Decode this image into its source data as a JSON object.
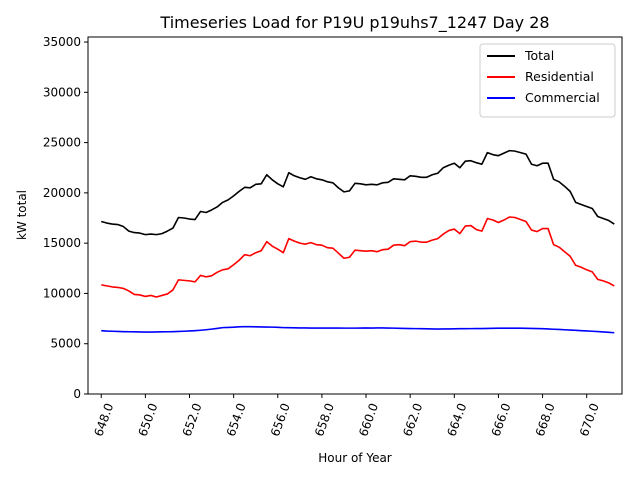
{
  "chart_data": {
    "type": "line",
    "title": "Timeseries Load for P19U p19uhs7_1247  Day 28",
    "xlabel": "Hour of Year",
    "ylabel": "kW total",
    "xlim": [
      647.4,
      671.6
    ],
    "ylim": [
      0,
      35500
    ],
    "xticks": [
      648,
      650,
      652,
      654,
      656,
      658,
      660,
      662,
      664,
      666,
      668,
      670
    ],
    "xtick_labels": [
      "648.0",
      "650.0",
      "652.0",
      "654.0",
      "656.0",
      "658.0",
      "660.0",
      "662.0",
      "664.0",
      "666.0",
      "668.0",
      "670.0"
    ],
    "yticks": [
      0,
      5000,
      10000,
      15000,
      20000,
      25000,
      30000,
      35000
    ],
    "ytick_labels": [
      "0",
      "5000",
      "10000",
      "15000",
      "20000",
      "25000",
      "30000",
      "35000"
    ],
    "legend_position": "top-right",
    "grid": false,
    "x_start": 648.0,
    "x_step": 0.25,
    "series": [
      {
        "name": "Total",
        "color": "#000000",
        "values": [
          17150,
          17000,
          16900,
          16850,
          16650,
          16200,
          16050,
          16000,
          15850,
          15900,
          15850,
          15950,
          16200,
          16500,
          17550,
          17500,
          17400,
          17350,
          18150,
          18050,
          18300,
          18600,
          19050,
          19300,
          19700,
          20150,
          20550,
          20500,
          20850,
          20900,
          21800,
          21300,
          20900,
          20600,
          22000,
          21700,
          21500,
          21350,
          21600,
          21400,
          21300,
          21100,
          21000,
          20500,
          20100,
          20200,
          20950,
          20900,
          20800,
          20850,
          20800,
          21000,
          21050,
          21400,
          21350,
          21300,
          21700,
          21650,
          21550,
          21550,
          21800,
          21950,
          22500,
          22750,
          22950,
          22500,
          23150,
          23200,
          23000,
          22850,
          24000,
          23800,
          23700,
          23950,
          24200,
          24150,
          24000,
          23850,
          22850,
          22700,
          22950,
          22950,
          21350,
          21100,
          20650,
          20150,
          19050,
          18850,
          18650,
          18450,
          17650,
          17450,
          17250,
          16900
        ]
      },
      {
        "name": "Residential",
        "color": "#ff0000",
        "values": [
          10850,
          10750,
          10650,
          10600,
          10500,
          10250,
          9900,
          9850,
          9700,
          9800,
          9650,
          9800,
          9950,
          10350,
          11350,
          11300,
          11250,
          11150,
          11800,
          11650,
          11750,
          12100,
          12350,
          12450,
          12850,
          13300,
          13850,
          13750,
          14050,
          14250,
          15150,
          14700,
          14400,
          14050,
          15450,
          15200,
          15000,
          14900,
          15050,
          14850,
          14800,
          14550,
          14500,
          14000,
          13500,
          13600,
          14300,
          14250,
          14200,
          14250,
          14150,
          14350,
          14400,
          14800,
          14850,
          14750,
          15150,
          15200,
          15100,
          15100,
          15300,
          15450,
          15900,
          16250,
          16400,
          15950,
          16700,
          16750,
          16350,
          16200,
          17450,
          17300,
          17050,
          17300,
          17600,
          17550,
          17350,
          17150,
          16300,
          16150,
          16450,
          16450,
          14850,
          14600,
          14150,
          13700,
          12800,
          12600,
          12350,
          12150,
          11400,
          11250,
          11050,
          10750
        ]
      },
      {
        "name": "Commercial",
        "color": "#0000ff",
        "values": [
          6300,
          6260,
          6240,
          6220,
          6200,
          6190,
          6180,
          6170,
          6160,
          6160,
          6170,
          6180,
          6190,
          6200,
          6220,
          6240,
          6270,
          6300,
          6340,
          6390,
          6450,
          6520,
          6600,
          6620,
          6640,
          6680,
          6700,
          6690,
          6680,
          6670,
          6660,
          6650,
          6630,
          6600,
          6590,
          6580,
          6570,
          6570,
          6560,
          6560,
          6560,
          6560,
          6560,
          6560,
          6550,
          6550,
          6550,
          6560,
          6570,
          6560,
          6570,
          6570,
          6560,
          6550,
          6530,
          6520,
          6510,
          6500,
          6490,
          6480,
          6470,
          6460,
          6470,
          6470,
          6480,
          6490,
          6490,
          6500,
          6510,
          6510,
          6520,
          6530,
          6540,
          6540,
          6540,
          6540,
          6540,
          6530,
          6520,
          6510,
          6490,
          6470,
          6440,
          6420,
          6390,
          6360,
          6330,
          6300,
          6270,
          6240,
          6210,
          6170,
          6130,
          6090
        ]
      }
    ]
  }
}
